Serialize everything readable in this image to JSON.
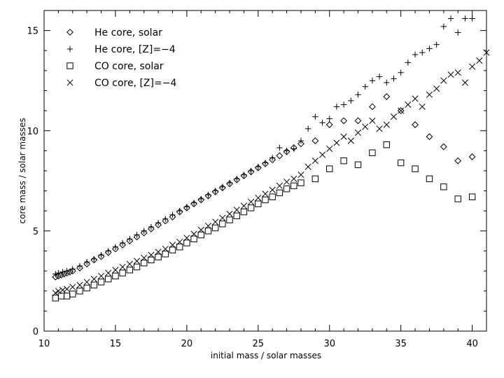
{
  "chart_data": {
    "type": "scatter",
    "title": "",
    "xlabel": "initial mass / solar masses",
    "ylabel": "core mass / solar masses",
    "xlim": [
      10,
      41
    ],
    "ylim": [
      0,
      16
    ],
    "xticks": [
      10,
      15,
      20,
      25,
      30,
      35,
      40
    ],
    "yticks": [
      0,
      5,
      10,
      15
    ],
    "legend_position": "top-left",
    "series": [
      {
        "name": "He core, solar",
        "marker": "diamond",
        "points": [
          [
            10.8,
            2.7
          ],
          [
            11.0,
            2.75
          ],
          [
            11.2,
            2.8
          ],
          [
            11.4,
            2.85
          ],
          [
            11.6,
            2.9
          ],
          [
            11.8,
            2.95
          ],
          [
            12.0,
            3.0
          ],
          [
            12.5,
            3.15
          ],
          [
            13.0,
            3.35
          ],
          [
            13.5,
            3.55
          ],
          [
            14.0,
            3.72
          ],
          [
            14.5,
            3.92
          ],
          [
            15.0,
            4.1
          ],
          [
            15.5,
            4.3
          ],
          [
            16.0,
            4.5
          ],
          [
            16.5,
            4.7
          ],
          [
            17.0,
            4.9
          ],
          [
            17.5,
            5.1
          ],
          [
            18.0,
            5.3
          ],
          [
            18.5,
            5.5
          ],
          [
            19.0,
            5.7
          ],
          [
            19.5,
            5.95
          ],
          [
            20.0,
            6.15
          ],
          [
            20.5,
            6.35
          ],
          [
            21.0,
            6.55
          ],
          [
            21.5,
            6.75
          ],
          [
            22.0,
            6.95
          ],
          [
            22.5,
            7.15
          ],
          [
            23.0,
            7.35
          ],
          [
            23.5,
            7.55
          ],
          [
            24.0,
            7.75
          ],
          [
            24.5,
            7.95
          ],
          [
            25.0,
            8.15
          ],
          [
            25.5,
            8.35
          ],
          [
            26.0,
            8.55
          ],
          [
            26.5,
            8.75
          ],
          [
            27.0,
            8.95
          ],
          [
            27.5,
            9.15
          ],
          [
            28.0,
            9.35
          ],
          [
            29.0,
            9.5
          ],
          [
            30.0,
            10.3
          ],
          [
            31.0,
            10.5
          ],
          [
            32.0,
            10.5
          ],
          [
            33.0,
            11.2
          ],
          [
            34.0,
            11.7
          ],
          [
            35.0,
            11.0
          ],
          [
            36.0,
            10.3
          ],
          [
            37.0,
            9.7
          ],
          [
            38.0,
            9.2
          ],
          [
            39.0,
            8.5
          ],
          [
            40.0,
            8.7
          ]
        ]
      },
      {
        "name": "He core, [Z]=−4",
        "marker": "plus",
        "points": [
          [
            10.8,
            2.85
          ],
          [
            11.0,
            2.9
          ],
          [
            11.3,
            2.95
          ],
          [
            11.6,
            3.0
          ],
          [
            12.0,
            3.1
          ],
          [
            12.5,
            3.25
          ],
          [
            13.0,
            3.45
          ],
          [
            13.5,
            3.6
          ],
          [
            14.0,
            3.8
          ],
          [
            14.5,
            4.0
          ],
          [
            15.0,
            4.2
          ],
          [
            15.5,
            4.4
          ],
          [
            16.0,
            4.6
          ],
          [
            16.5,
            4.8
          ],
          [
            17.0,
            5.0
          ],
          [
            17.5,
            5.2
          ],
          [
            18.0,
            5.4
          ],
          [
            18.5,
            5.6
          ],
          [
            19.0,
            5.8
          ],
          [
            19.5,
            6.0
          ],
          [
            20.0,
            6.2
          ],
          [
            20.5,
            6.4
          ],
          [
            21.0,
            6.6
          ],
          [
            21.5,
            6.8
          ],
          [
            22.0,
            7.0
          ],
          [
            22.5,
            7.2
          ],
          [
            23.0,
            7.4
          ],
          [
            23.5,
            7.6
          ],
          [
            24.0,
            7.8
          ],
          [
            24.5,
            8.0
          ],
          [
            25.0,
            8.2
          ],
          [
            25.5,
            8.4
          ],
          [
            26.0,
            8.65
          ],
          [
            26.5,
            9.15
          ],
          [
            27.0,
            9.0
          ],
          [
            27.5,
            9.1
          ],
          [
            28.0,
            9.5
          ],
          [
            28.5,
            10.1
          ],
          [
            29.0,
            10.7
          ],
          [
            29.5,
            10.4
          ],
          [
            30.0,
            10.6
          ],
          [
            30.5,
            11.2
          ],
          [
            31.0,
            11.3
          ],
          [
            31.5,
            11.5
          ],
          [
            32.0,
            11.8
          ],
          [
            32.5,
            12.2
          ],
          [
            33.0,
            12.5
          ],
          [
            33.5,
            12.7
          ],
          [
            34.0,
            12.4
          ],
          [
            34.5,
            12.6
          ],
          [
            35.0,
            12.9
          ],
          [
            35.5,
            13.4
          ],
          [
            36.0,
            13.8
          ],
          [
            36.5,
            13.9
          ],
          [
            37.0,
            14.1
          ],
          [
            37.5,
            14.3
          ],
          [
            38.0,
            15.2
          ],
          [
            38.5,
            15.6
          ],
          [
            39.0,
            14.9
          ],
          [
            39.5,
            15.6
          ],
          [
            40.0,
            15.6
          ]
        ]
      },
      {
        "name": "CO core, solar",
        "marker": "square",
        "points": [
          [
            10.8,
            1.65
          ],
          [
            11.2,
            1.75
          ],
          [
            11.6,
            1.75
          ],
          [
            12.0,
            1.85
          ],
          [
            12.5,
            2.0
          ],
          [
            13.0,
            2.15
          ],
          [
            13.5,
            2.3
          ],
          [
            14.0,
            2.45
          ],
          [
            14.5,
            2.6
          ],
          [
            15.0,
            2.75
          ],
          [
            15.5,
            2.9
          ],
          [
            16.0,
            3.05
          ],
          [
            16.5,
            3.2
          ],
          [
            17.0,
            3.4
          ],
          [
            17.5,
            3.55
          ],
          [
            18.0,
            3.7
          ],
          [
            18.5,
            3.85
          ],
          [
            19.0,
            4.05
          ],
          [
            19.5,
            4.2
          ],
          [
            20.0,
            4.4
          ],
          [
            20.5,
            4.6
          ],
          [
            21.0,
            4.8
          ],
          [
            21.5,
            5.0
          ],
          [
            22.0,
            5.15
          ],
          [
            22.5,
            5.35
          ],
          [
            23.0,
            5.55
          ],
          [
            23.5,
            5.75
          ],
          [
            24.0,
            5.95
          ],
          [
            24.5,
            6.15
          ],
          [
            25.0,
            6.35
          ],
          [
            25.5,
            6.55
          ],
          [
            26.0,
            6.7
          ],
          [
            26.5,
            6.9
          ],
          [
            27.0,
            7.1
          ],
          [
            27.5,
            7.25
          ],
          [
            28.0,
            7.4
          ],
          [
            29.0,
            7.6
          ],
          [
            30.0,
            8.1
          ],
          [
            31.0,
            8.5
          ],
          [
            32.0,
            8.3
          ],
          [
            33.0,
            8.9
          ],
          [
            34.0,
            9.3
          ],
          [
            35.0,
            8.4
          ],
          [
            36.0,
            8.1
          ],
          [
            37.0,
            7.6
          ],
          [
            38.0,
            7.2
          ],
          [
            39.0,
            6.6
          ],
          [
            40.0,
            6.7
          ]
        ]
      },
      {
        "name": "CO core, [Z]=−4",
        "marker": "cross",
        "points": [
          [
            10.8,
            1.9
          ],
          [
            11.0,
            2.0
          ],
          [
            11.3,
            2.05
          ],
          [
            11.6,
            2.1
          ],
          [
            12.0,
            2.2
          ],
          [
            12.5,
            2.3
          ],
          [
            13.0,
            2.45
          ],
          [
            13.5,
            2.6
          ],
          [
            14.0,
            2.75
          ],
          [
            14.5,
            2.9
          ],
          [
            15.0,
            3.05
          ],
          [
            15.5,
            3.2
          ],
          [
            16.0,
            3.35
          ],
          [
            16.5,
            3.5
          ],
          [
            17.0,
            3.65
          ],
          [
            17.5,
            3.8
          ],
          [
            18.0,
            3.95
          ],
          [
            18.5,
            4.1
          ],
          [
            19.0,
            4.3
          ],
          [
            19.5,
            4.45
          ],
          [
            20.0,
            4.65
          ],
          [
            20.5,
            4.85
          ],
          [
            21.0,
            5.05
          ],
          [
            21.5,
            5.25
          ],
          [
            22.0,
            5.45
          ],
          [
            22.5,
            5.65
          ],
          [
            23.0,
            5.85
          ],
          [
            23.5,
            6.05
          ],
          [
            24.0,
            6.25
          ],
          [
            24.5,
            6.45
          ],
          [
            25.0,
            6.65
          ],
          [
            25.5,
            6.85
          ],
          [
            26.0,
            7.05
          ],
          [
            26.5,
            7.25
          ],
          [
            27.0,
            7.45
          ],
          [
            27.5,
            7.6
          ],
          [
            28.0,
            7.8
          ],
          [
            28.5,
            8.2
          ],
          [
            29.0,
            8.5
          ],
          [
            29.5,
            8.8
          ],
          [
            30.0,
            9.1
          ],
          [
            30.5,
            9.4
          ],
          [
            31.0,
            9.7
          ],
          [
            31.5,
            9.5
          ],
          [
            32.0,
            9.9
          ],
          [
            32.5,
            10.2
          ],
          [
            33.0,
            10.5
          ],
          [
            33.5,
            10.1
          ],
          [
            34.0,
            10.3
          ],
          [
            34.5,
            10.7
          ],
          [
            35.0,
            11.0
          ],
          [
            35.5,
            11.3
          ],
          [
            36.0,
            11.6
          ],
          [
            36.5,
            11.2
          ],
          [
            37.0,
            11.8
          ],
          [
            37.5,
            12.1
          ],
          [
            38.0,
            12.5
          ],
          [
            38.5,
            12.8
          ],
          [
            39.0,
            12.9
          ],
          [
            39.5,
            12.4
          ],
          [
            40.0,
            13.2
          ],
          [
            40.5,
            13.5
          ],
          [
            41.0,
            13.9
          ]
        ]
      }
    ]
  }
}
